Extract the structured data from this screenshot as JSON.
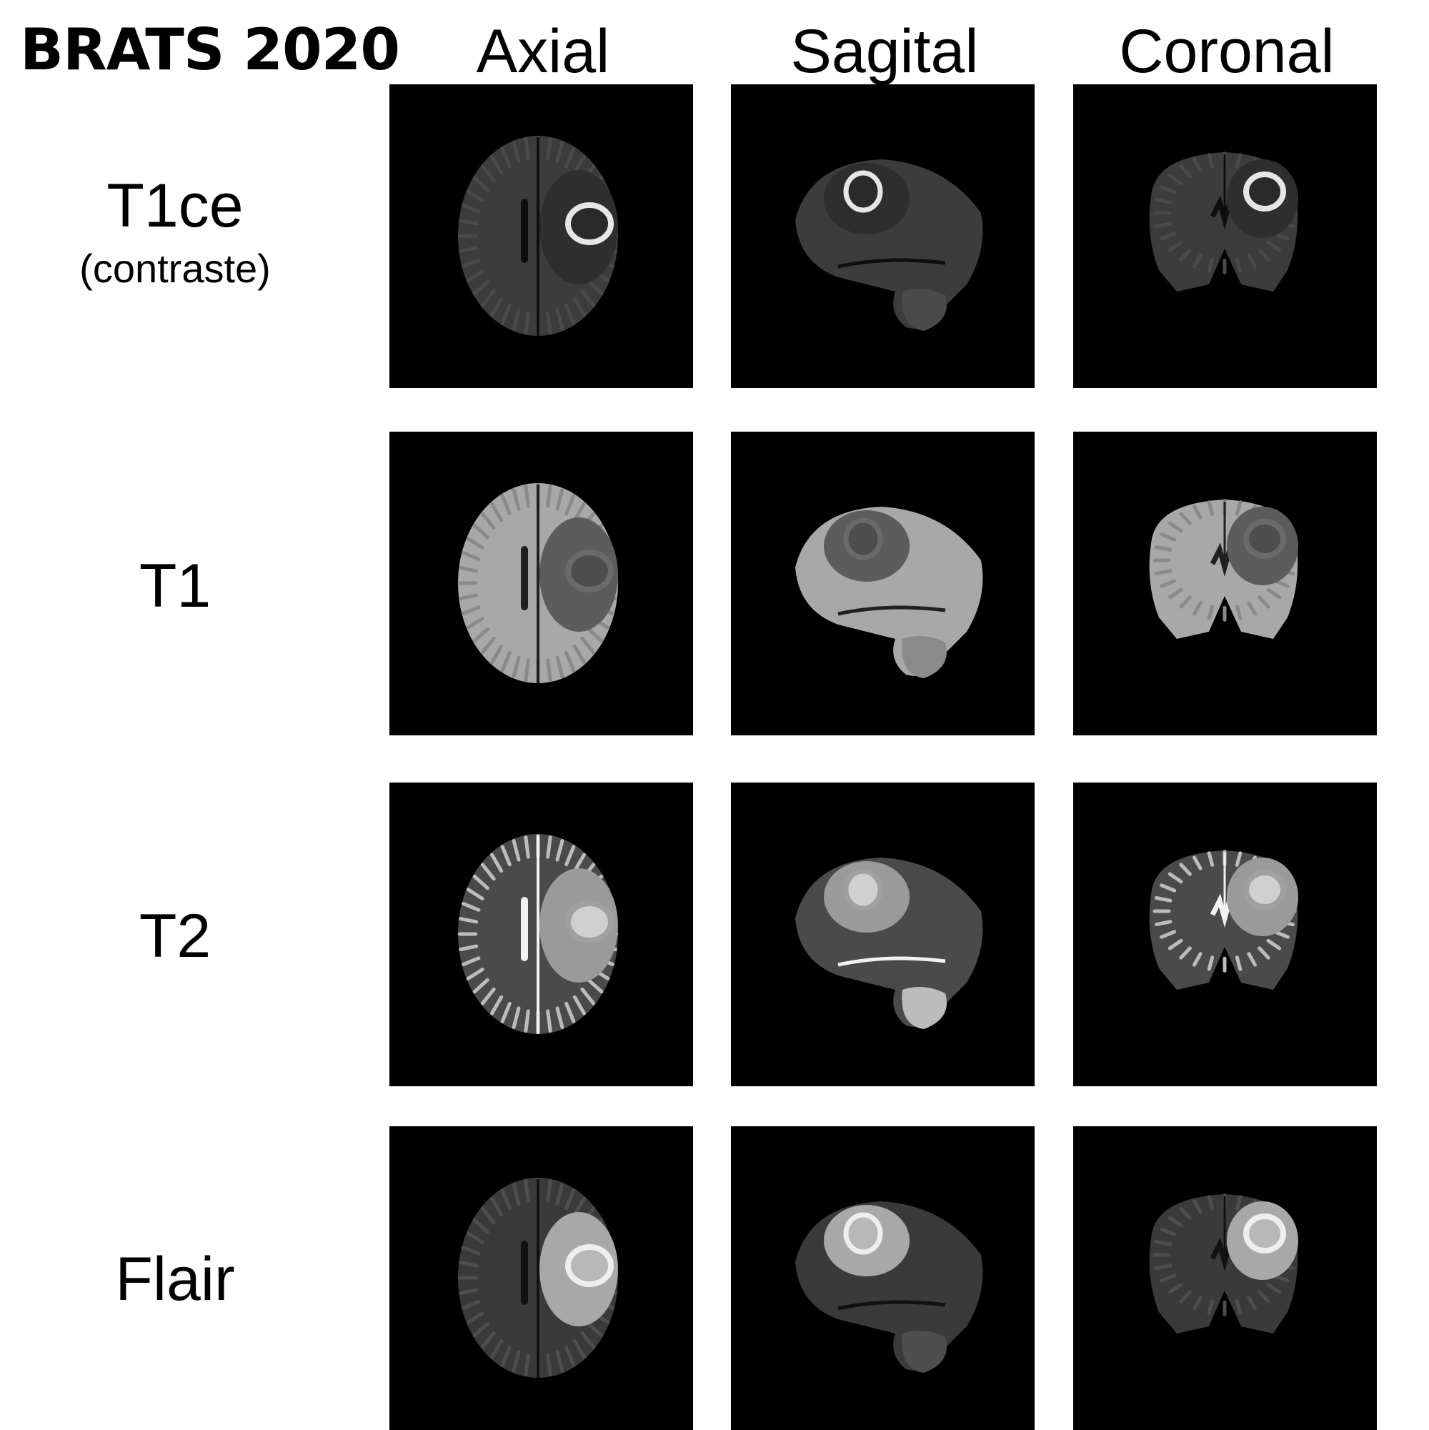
{
  "figure": {
    "title": "BRATS 2020",
    "columns": [
      "Axial",
      "Sagital",
      "Coronal"
    ],
    "rows": [
      {
        "label": "T1ce",
        "sublabel": "(contraste)",
        "modality": "t1ce"
      },
      {
        "label": "T1",
        "sublabel": "",
        "modality": "t1"
      },
      {
        "label": "T2",
        "sublabel": "",
        "modality": "t2"
      },
      {
        "label": "Flair",
        "sublabel": "",
        "modality": "flair"
      }
    ]
  },
  "modalities": {
    "t1ce": {
      "brain": "#3c3c3c",
      "cortex": "#4a4a4a",
      "lesion_core": "#2a2a2a",
      "lesion_ring": "#e6e6e6",
      "edema": "#2e2e2e",
      "csf": "#0e0e0e"
    },
    "t1": {
      "brain": "#a8a8a8",
      "cortex": "#8a8a8a",
      "lesion_core": "#4e4e4e",
      "lesion_ring": "#6a6a6a",
      "edema": "#5c5c5c",
      "csf": "#202020"
    },
    "t2": {
      "brain": "#4a4a4a",
      "cortex": "#bcbcbc",
      "lesion_core": "#d0d0d0",
      "lesion_ring": "#a0a0a0",
      "edema": "#9a9a9a",
      "csf": "#f2f2f2"
    },
    "flair": {
      "brain": "#3a3a3a",
      "cortex": "#4e4e4e",
      "lesion_core": "#b8b8b8",
      "lesion_ring": "#eeeeee",
      "edema": "#a8a8a8",
      "csf": "#111111"
    }
  }
}
